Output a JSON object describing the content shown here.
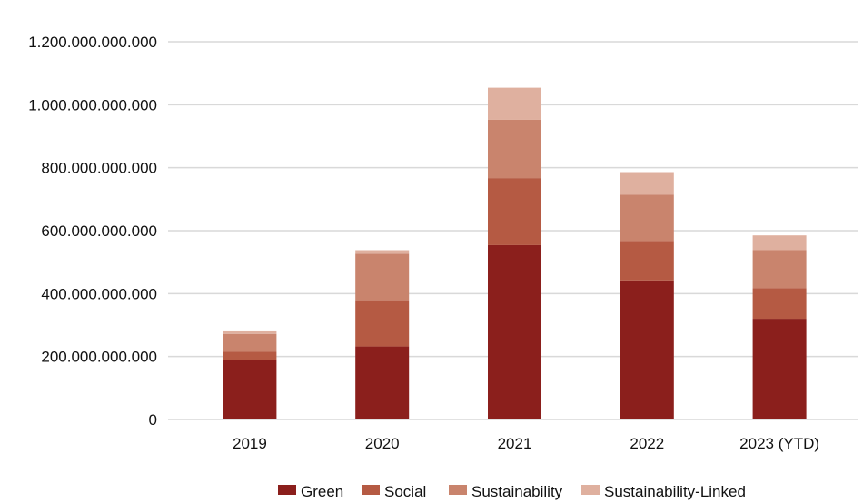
{
  "chart_data": {
    "type": "bar",
    "stacked": true,
    "categories": [
      "2019",
      "2020",
      "2021",
      "2022",
      "2023 (YTD)"
    ],
    "series": [
      {
        "name": "Green",
        "color": "#8b1f1c",
        "values": [
          188000000000,
          232000000000,
          554000000000,
          442000000000,
          320000000000
        ]
      },
      {
        "name": "Social",
        "color": "#b55a43",
        "values": [
          27000000000,
          147000000000,
          213000000000,
          125000000000,
          97000000000
        ]
      },
      {
        "name": "Sustainability",
        "color": "#c9846d",
        "values": [
          57000000000,
          148000000000,
          185000000000,
          147000000000,
          121000000000
        ]
      },
      {
        "name": "Sustainability-Linked",
        "color": "#dfb09f",
        "values": [
          8000000000,
          11000000000,
          102000000000,
          72000000000,
          47000000000
        ]
      }
    ],
    "y_ticks": [
      "0",
      "200.000.000.000",
      "400.000.000.000",
      "600.000.000.000",
      "800.000.000.000",
      "1.000.000.000.000",
      "1.200.000.000.000"
    ],
    "ylim": [
      0,
      1200000000000
    ],
    "grid": true,
    "gridline_color": "#d9d9d9",
    "legend_position": "bottom"
  }
}
